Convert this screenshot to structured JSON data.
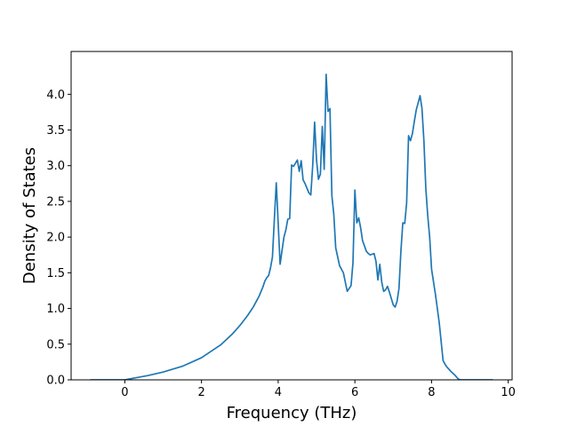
{
  "chart_data": {
    "type": "line",
    "title": "",
    "xlabel": "Frequency (THz)",
    "ylabel": "Density of States",
    "xlim": [
      -1.4,
      10.1
    ],
    "ylim": [
      0.0,
      4.6
    ],
    "x_ticks": [
      0,
      2,
      4,
      6,
      8,
      10
    ],
    "y_ticks": [
      0.0,
      0.5,
      1.0,
      1.5,
      2.0,
      2.5,
      3.0,
      3.5,
      4.0
    ],
    "x_tick_labels": [
      "0",
      "2",
      "4",
      "6",
      "8",
      "10"
    ],
    "y_tick_labels": [
      "0.0",
      "0.5",
      "1.0",
      "1.5",
      "2.0",
      "2.5",
      "3.0",
      "3.5",
      "4.0"
    ],
    "grid": false,
    "line_color": "#1f77b4",
    "series": [
      {
        "x": [
          -0.9,
          0.0,
          0.3,
          0.6,
          1.0,
          1.5,
          2.0,
          2.5,
          2.8,
          3.0,
          3.2,
          3.35,
          3.5,
          3.6,
          3.65,
          3.7,
          3.75,
          3.8,
          3.85,
          3.9,
          3.95,
          4.05,
          4.15,
          4.2,
          4.25,
          4.3,
          4.35,
          4.4,
          4.5,
          4.55,
          4.6,
          4.65,
          4.7,
          4.8,
          4.85,
          4.9,
          4.95,
          5.0,
          5.05,
          5.1,
          5.15,
          5.2,
          5.25,
          5.3,
          5.35,
          5.4,
          5.45,
          5.5,
          5.6,
          5.7,
          5.8,
          5.9,
          5.95,
          6.0,
          6.05,
          6.1,
          6.15,
          6.2,
          6.3,
          6.35,
          6.4,
          6.5,
          6.55,
          6.6,
          6.65,
          6.7,
          6.75,
          6.8,
          6.85,
          6.9,
          7.0,
          7.05,
          7.1,
          7.15,
          7.2,
          7.25,
          7.3,
          7.35,
          7.4,
          7.45,
          7.5,
          7.55,
          7.6,
          7.7,
          7.75,
          7.8,
          7.85,
          7.9,
          7.95,
          8.0,
          8.1,
          8.2,
          8.3,
          8.35,
          8.4,
          8.45,
          8.5,
          8.6,
          8.7,
          8.75,
          9.0,
          9.6
        ],
        "y": [
          0.0,
          0.0,
          0.03,
          0.06,
          0.11,
          0.19,
          0.31,
          0.49,
          0.64,
          0.76,
          0.9,
          1.02,
          1.17,
          1.3,
          1.38,
          1.43,
          1.46,
          1.57,
          1.72,
          2.25,
          2.76,
          1.62,
          2.0,
          2.1,
          2.25,
          2.26,
          3.01,
          2.99,
          3.08,
          2.92,
          3.07,
          2.8,
          2.75,
          2.62,
          2.59,
          3.0,
          3.61,
          3.08,
          2.81,
          2.88,
          3.55,
          2.95,
          4.28,
          3.76,
          3.8,
          2.58,
          2.32,
          1.85,
          1.6,
          1.5,
          1.24,
          1.32,
          1.64,
          2.66,
          2.2,
          2.27,
          2.13,
          1.95,
          1.8,
          1.77,
          1.75,
          1.77,
          1.66,
          1.4,
          1.62,
          1.37,
          1.24,
          1.26,
          1.31,
          1.23,
          1.05,
          1.02,
          1.1,
          1.28,
          1.8,
          2.2,
          2.19,
          2.48,
          3.42,
          3.35,
          3.45,
          3.62,
          3.78,
          3.98,
          3.8,
          3.35,
          2.68,
          2.3,
          2.0,
          1.55,
          1.2,
          0.8,
          0.27,
          0.22,
          0.18,
          0.15,
          0.12,
          0.07,
          0.01,
          0.0,
          0.0,
          0.0
        ]
      }
    ]
  }
}
